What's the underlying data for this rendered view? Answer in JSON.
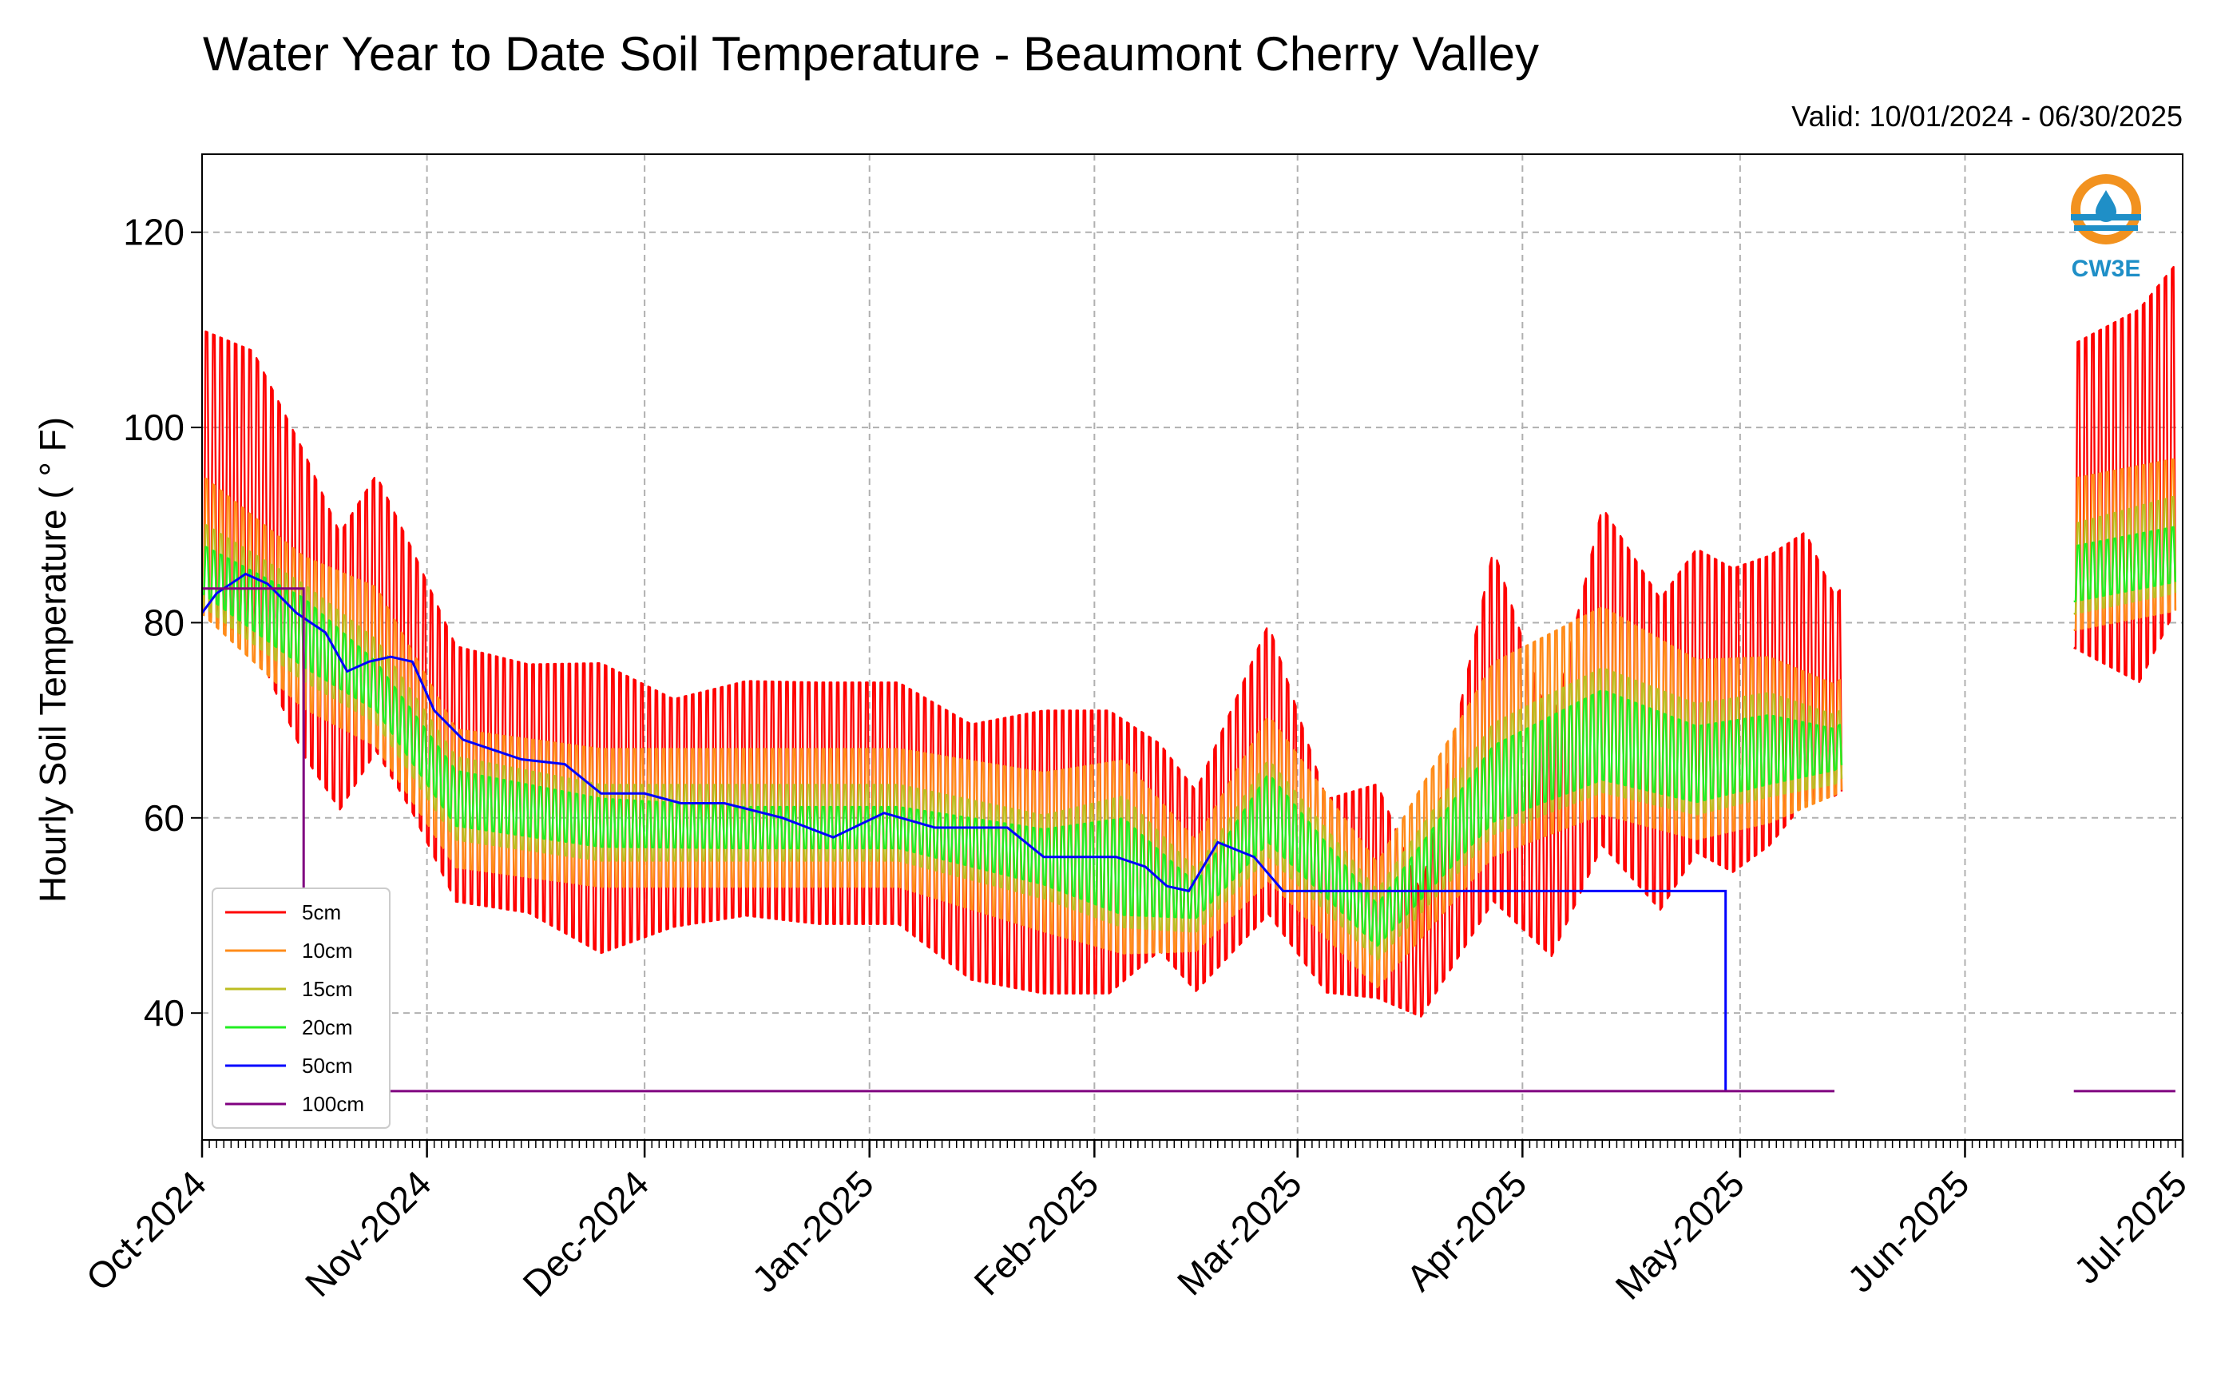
{
  "chart_data": {
    "type": "line",
    "title": "Water Year to Date Soil Temperature - Beaumont Cherry Valley",
    "subtitle": "Valid: 10/01/2024 - 06/30/2025",
    "ylabel": "Hourly Soil Temperature ( ° F)",
    "xlabel": "",
    "x_range": [
      "2024-10-01",
      "2025-07-01"
    ],
    "ylim": [
      27,
      128
    ],
    "yticks": [
      40,
      60,
      80,
      100,
      120
    ],
    "xticks": [
      {
        "date": "2024-10-01",
        "label": "Oct-2024"
      },
      {
        "date": "2024-11-01",
        "label": "Nov-2024"
      },
      {
        "date": "2024-12-01",
        "label": "Dec-2024"
      },
      {
        "date": "2025-01-01",
        "label": "Jan-2025"
      },
      {
        "date": "2025-02-01",
        "label": "Feb-2025"
      },
      {
        "date": "2025-03-01",
        "label": "Mar-2025"
      },
      {
        "date": "2025-04-01",
        "label": "Apr-2025"
      },
      {
        "date": "2025-05-01",
        "label": "May-2025"
      },
      {
        "date": "2025-06-01",
        "label": "Jun-2025"
      },
      {
        "date": "2025-07-01",
        "label": "Jul-2025"
      }
    ],
    "grid": true,
    "legend_position": "bottom-left",
    "data_gaps": [
      [
        "2025-05-15",
        "2025-06-16"
      ]
    ],
    "series": [
      {
        "name": "5cm",
        "color": "#ff0000",
        "daily_max": [
          [
            "2024-10-01",
            116
          ],
          [
            "2024-10-08",
            114
          ],
          [
            "2024-10-15",
            104
          ],
          [
            "2024-10-20",
            95
          ],
          [
            "2024-10-25",
            101
          ],
          [
            "2024-10-30",
            93
          ],
          [
            "2024-11-05",
            83
          ],
          [
            "2024-11-15",
            81
          ],
          [
            "2024-11-25",
            82
          ],
          [
            "2024-12-05",
            77
          ],
          [
            "2024-12-15",
            79
          ],
          [
            "2024-12-25",
            79
          ],
          [
            "2025-01-05",
            79
          ],
          [
            "2025-01-15",
            75
          ],
          [
            "2025-01-25",
            77
          ],
          [
            "2025-02-03",
            77
          ],
          [
            "2025-02-10",
            72
          ],
          [
            "2025-02-15",
            67
          ],
          [
            "2025-02-25",
            86
          ],
          [
            "2025-03-05",
            66
          ],
          [
            "2025-03-12",
            68
          ],
          [
            "2025-03-18",
            55
          ],
          [
            "2025-03-28",
            95
          ],
          [
            "2025-04-05",
            74
          ],
          [
            "2025-04-12",
            99
          ],
          [
            "2025-04-20",
            89
          ],
          [
            "2025-04-25",
            94
          ],
          [
            "2025-04-30",
            92
          ],
          [
            "2025-05-05",
            93
          ],
          [
            "2025-05-10",
            95
          ],
          [
            "2025-05-14",
            87
          ],
          [
            "2025-06-16",
            115
          ],
          [
            "2025-06-25",
            120
          ],
          [
            "2025-06-30",
            124
          ]
        ],
        "daily_min": [
          [
            "2024-10-01",
            75
          ],
          [
            "2024-10-08",
            72
          ],
          [
            "2024-10-15",
            60
          ],
          [
            "2024-10-20",
            55
          ],
          [
            "2024-10-25",
            61
          ],
          [
            "2024-10-30",
            55
          ],
          [
            "2024-11-05",
            46
          ],
          [
            "2024-11-15",
            45
          ],
          [
            "2024-11-25",
            40
          ],
          [
            "2024-12-05",
            44
          ],
          [
            "2024-12-15",
            45
          ],
          [
            "2024-12-25",
            44
          ],
          [
            "2025-01-05",
            44
          ],
          [
            "2025-01-15",
            38
          ],
          [
            "2025-01-25",
            36
          ],
          [
            "2025-02-03",
            36
          ],
          [
            "2025-02-10",
            42
          ],
          [
            "2025-02-15",
            38
          ],
          [
            "2025-02-25",
            44
          ],
          [
            "2025-03-05",
            38
          ],
          [
            "2025-03-12",
            37
          ],
          [
            "2025-03-18",
            37
          ],
          [
            "2025-03-28",
            44
          ],
          [
            "2025-04-05",
            41
          ],
          [
            "2025-04-12",
            50
          ],
          [
            "2025-04-20",
            44
          ],
          [
            "2025-04-25",
            50
          ],
          [
            "2025-04-30",
            48
          ],
          [
            "2025-05-05",
            51
          ],
          [
            "2025-05-10",
            56
          ],
          [
            "2025-05-14",
            58
          ],
          [
            "2025-06-16",
            71
          ],
          [
            "2025-06-25",
            66
          ],
          [
            "2025-06-30",
            74
          ]
        ]
      },
      {
        "name": "10cm",
        "color": "#ff8c1a",
        "daily_max": [
          [
            "2024-10-01",
            98
          ],
          [
            "2024-10-15",
            90
          ],
          [
            "2024-10-25",
            87
          ],
          [
            "2024-11-05",
            72
          ],
          [
            "2024-11-25",
            70
          ],
          [
            "2024-12-15",
            70
          ],
          [
            "2025-01-05",
            70
          ],
          [
            "2025-01-25",
            68
          ],
          [
            "2025-02-05",
            70
          ],
          [
            "2025-02-15",
            60
          ],
          [
            "2025-02-25",
            74
          ],
          [
            "2025-03-12",
            58
          ],
          [
            "2025-03-28",
            80
          ],
          [
            "2025-04-12",
            86
          ],
          [
            "2025-04-25",
            80
          ],
          [
            "2025-05-05",
            80
          ],
          [
            "2025-05-14",
            76
          ],
          [
            "2025-06-16",
            98
          ],
          [
            "2025-06-30",
            100
          ]
        ],
        "daily_min": [
          [
            "2024-10-01",
            78
          ],
          [
            "2024-10-15",
            68
          ],
          [
            "2024-10-25",
            64
          ],
          [
            "2024-11-05",
            52
          ],
          [
            "2024-11-25",
            50
          ],
          [
            "2024-12-15",
            50
          ],
          [
            "2025-01-05",
            50
          ],
          [
            "2025-01-25",
            45
          ],
          [
            "2025-02-05",
            42
          ],
          [
            "2025-02-15",
            44
          ],
          [
            "2025-02-25",
            50
          ],
          [
            "2025-03-12",
            40
          ],
          [
            "2025-03-28",
            52
          ],
          [
            "2025-04-12",
            56
          ],
          [
            "2025-04-25",
            54
          ],
          [
            "2025-05-05",
            56
          ],
          [
            "2025-05-14",
            60
          ],
          [
            "2025-06-16",
            76
          ],
          [
            "2025-06-30",
            78
          ]
        ]
      },
      {
        "name": "15cm",
        "color": "#bcbd22",
        "daily_max": [
          [
            "2024-10-01",
            92
          ],
          [
            "2024-10-15",
            86
          ],
          [
            "2024-10-25",
            80
          ],
          [
            "2024-11-05",
            68
          ],
          [
            "2024-11-25",
            65
          ],
          [
            "2024-12-15",
            65
          ],
          [
            "2025-01-05",
            65
          ],
          [
            "2025-01-25",
            62
          ],
          [
            "2025-02-05",
            65
          ],
          [
            "2025-02-15",
            56
          ],
          [
            "2025-02-25",
            68
          ],
          [
            "2025-03-12",
            54
          ],
          [
            "2025-03-28",
            72
          ],
          [
            "2025-04-12",
            78
          ],
          [
            "2025-04-25",
            74
          ],
          [
            "2025-05-05",
            75
          ],
          [
            "2025-05-14",
            72
          ],
          [
            "2025-06-16",
            92
          ],
          [
            "2025-06-30",
            95
          ]
        ],
        "daily_min": [
          [
            "2024-10-01",
            80
          ],
          [
            "2024-10-15",
            72
          ],
          [
            "2024-10-25",
            68
          ],
          [
            "2024-11-05",
            56
          ],
          [
            "2024-11-25",
            54
          ],
          [
            "2024-12-15",
            54
          ],
          [
            "2025-01-05",
            54
          ],
          [
            "2025-01-25",
            50
          ],
          [
            "2025-02-05",
            46
          ],
          [
            "2025-02-15",
            47
          ],
          [
            "2025-02-25",
            54
          ],
          [
            "2025-03-12",
            44
          ],
          [
            "2025-03-28",
            56
          ],
          [
            "2025-04-12",
            60
          ],
          [
            "2025-04-25",
            58
          ],
          [
            "2025-05-05",
            60
          ],
          [
            "2025-05-14",
            62
          ],
          [
            "2025-06-16",
            79
          ],
          [
            "2025-06-30",
            81
          ]
        ]
      },
      {
        "name": "20cm",
        "color": "#22ee22",
        "daily_max": [
          [
            "2024-10-01",
            89
          ],
          [
            "2024-10-15",
            84
          ],
          [
            "2024-10-25",
            77
          ],
          [
            "2024-11-05",
            66
          ],
          [
            "2024-11-25",
            63
          ],
          [
            "2024-12-15",
            62
          ],
          [
            "2025-01-05",
            62
          ],
          [
            "2025-01-25",
            60
          ],
          [
            "2025-02-05",
            62
          ],
          [
            "2025-02-15",
            54
          ],
          [
            "2025-02-25",
            66
          ],
          [
            "2025-03-12",
            52
          ],
          [
            "2025-03-28",
            69
          ],
          [
            "2025-04-12",
            75
          ],
          [
            "2025-04-25",
            71
          ],
          [
            "2025-05-05",
            72
          ],
          [
            "2025-05-14",
            70
          ],
          [
            "2025-06-16",
            89
          ],
          [
            "2025-06-30",
            91
          ]
        ],
        "daily_min": [
          [
            "2024-10-01",
            82
          ],
          [
            "2024-10-15",
            74
          ],
          [
            "2024-10-25",
            70
          ],
          [
            "2024-11-05",
            58
          ],
          [
            "2024-11-25",
            56
          ],
          [
            "2024-12-15",
            56
          ],
          [
            "2025-01-05",
            56
          ],
          [
            "2025-01-25",
            52
          ],
          [
            "2025-02-05",
            48
          ],
          [
            "2025-02-15",
            49
          ],
          [
            "2025-02-25",
            56
          ],
          [
            "2025-03-12",
            46
          ],
          [
            "2025-03-28",
            58
          ],
          [
            "2025-04-12",
            62
          ],
          [
            "2025-04-25",
            60
          ],
          [
            "2025-05-05",
            62
          ],
          [
            "2025-05-14",
            64
          ],
          [
            "2025-06-16",
            81
          ],
          [
            "2025-06-30",
            83
          ]
        ]
      },
      {
        "name": "50cm",
        "color": "#0000ff",
        "values": [
          [
            "2024-10-01",
            81
          ],
          [
            "2024-10-03",
            83
          ],
          [
            "2024-10-07",
            85
          ],
          [
            "2024-10-10",
            84
          ],
          [
            "2024-10-14",
            81
          ],
          [
            "2024-10-18",
            79
          ],
          [
            "2024-10-21",
            75
          ],
          [
            "2024-10-24",
            76
          ],
          [
            "2024-10-27",
            76.5
          ],
          [
            "2024-10-30",
            76
          ],
          [
            "2024-11-02",
            71
          ],
          [
            "2024-11-06",
            68
          ],
          [
            "2024-11-10",
            67
          ],
          [
            "2024-11-14",
            66
          ],
          [
            "2024-11-20",
            65.5
          ],
          [
            "2024-11-25",
            62.5
          ],
          [
            "2024-12-01",
            62.5
          ],
          [
            "2024-12-06",
            61.5
          ],
          [
            "2024-12-12",
            61.5
          ],
          [
            "2024-12-20",
            60
          ],
          [
            "2024-12-27",
            58
          ],
          [
            "2025-01-03",
            60.5
          ],
          [
            "2025-01-10",
            59
          ],
          [
            "2025-01-16",
            59
          ],
          [
            "2025-01-20",
            59
          ],
          [
            "2025-01-25",
            56
          ],
          [
            "2025-02-04",
            56
          ],
          [
            "2025-02-08",
            55
          ],
          [
            "2025-02-11",
            53
          ],
          [
            "2025-02-14",
            52.5
          ],
          [
            "2025-02-18",
            57.5
          ],
          [
            "2025-02-23",
            56
          ],
          [
            "2025-02-27",
            52.5
          ],
          [
            "2025-04-29",
            52.5
          ],
          [
            "2025-04-29",
            32
          ]
        ]
      },
      {
        "name": "100cm",
        "color": "#800080",
        "values": [
          [
            "2024-10-01",
            83.5
          ],
          [
            "2024-10-15",
            83.5
          ],
          [
            "2024-10-15",
            32
          ],
          [
            "2025-05-14",
            32
          ]
        ],
        "values_after_gap": [
          [
            "2025-06-16",
            32
          ],
          [
            "2025-06-30",
            32
          ]
        ]
      }
    ]
  },
  "logo": {
    "text": "CW3E",
    "icon": "water-drop-sun-icon",
    "ring_color": "#f2921f",
    "wave_color": "#1f8fc7"
  },
  "colors": {
    "grid": "#b0b0b0",
    "axis": "#000000"
  }
}
